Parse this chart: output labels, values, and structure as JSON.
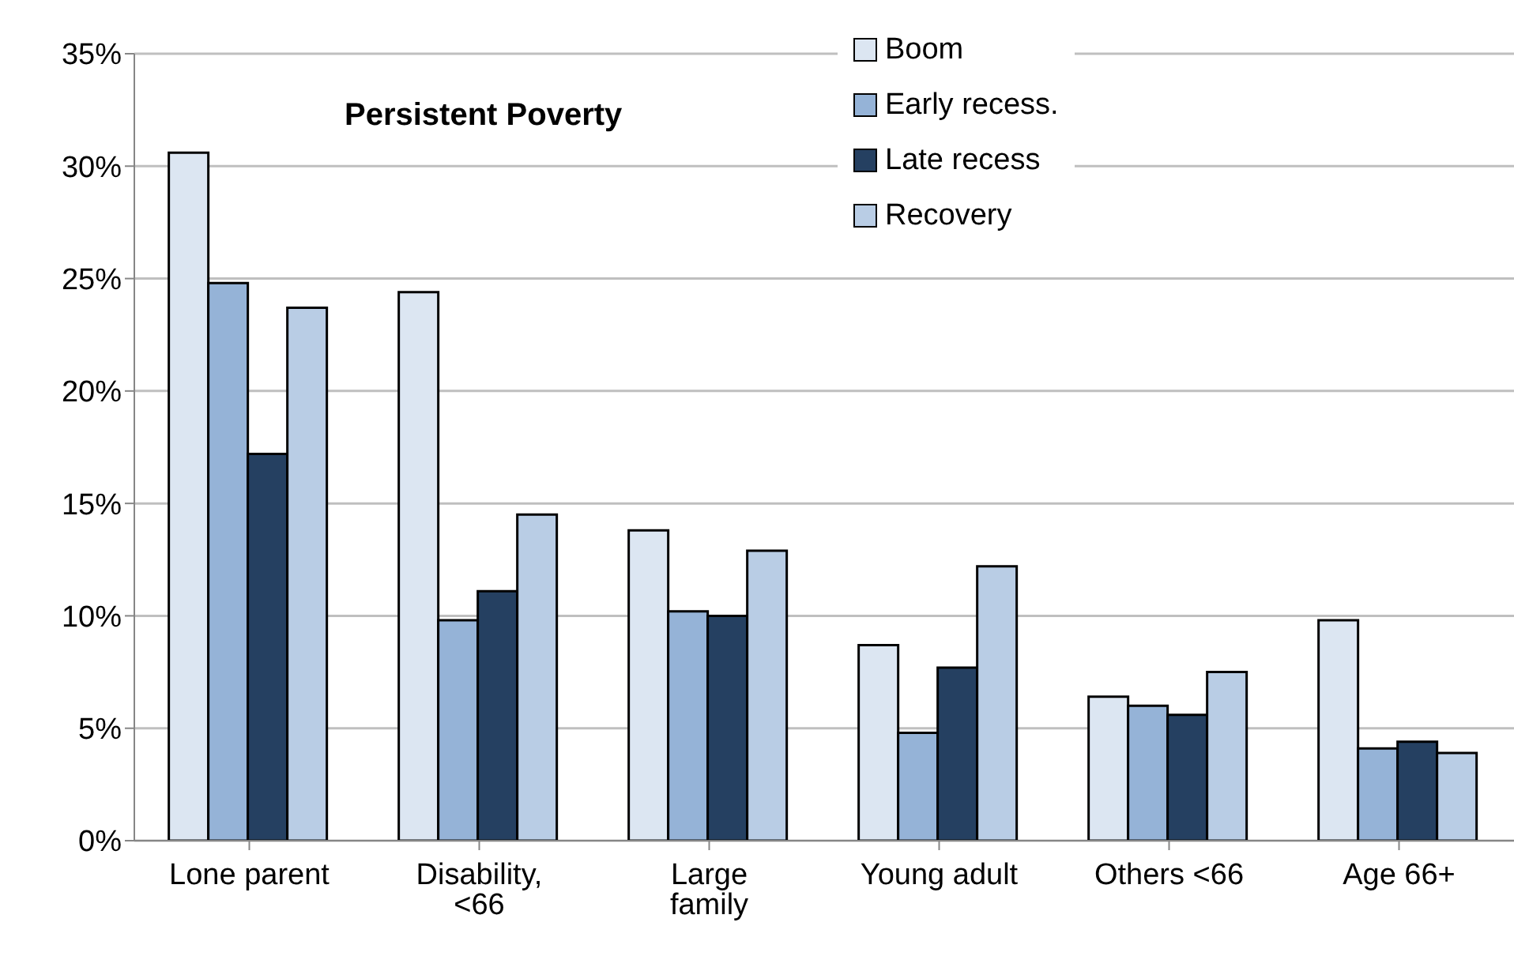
{
  "chart_data": {
    "type": "bar",
    "categories": [
      "Lone parent",
      "Disability, <66",
      "Large family",
      "Young adult",
      "Others <66",
      "Age 66+"
    ],
    "series": [
      {
        "name": "Boom",
        "color": "#dce6f2",
        "values": [
          30.6,
          24.4,
          13.8,
          8.7,
          6.4,
          9.8
        ]
      },
      {
        "name": "Early recess.",
        "color": "#95b3d7",
        "values": [
          24.8,
          9.8,
          10.2,
          4.8,
          6.0,
          4.1
        ]
      },
      {
        "name": "Late recess",
        "color": "#254061",
        "values": [
          17.2,
          11.1,
          10.0,
          7.7,
          5.6,
          4.4
        ]
      },
      {
        "name": "Recovery",
        "color": "#b9cde5",
        "values": [
          23.7,
          14.5,
          12.9,
          12.2,
          7.5,
          3.9
        ]
      }
    ],
    "ylim": [
      0,
      35
    ],
    "yticks": [
      {
        "value": 0,
        "label": "0%"
      },
      {
        "value": 5,
        "label": "5%"
      },
      {
        "value": 10,
        "label": "10%"
      },
      {
        "value": 15,
        "label": "15%"
      },
      {
        "value": 20,
        "label": "20%"
      },
      {
        "value": 25,
        "label": "25%"
      },
      {
        "value": 30,
        "label": "30%"
      },
      {
        "value": 35,
        "label": "35%"
      }
    ],
    "grid": "y",
    "legend": "top",
    "annotations": [
      "Persistent Poverty"
    ]
  }
}
